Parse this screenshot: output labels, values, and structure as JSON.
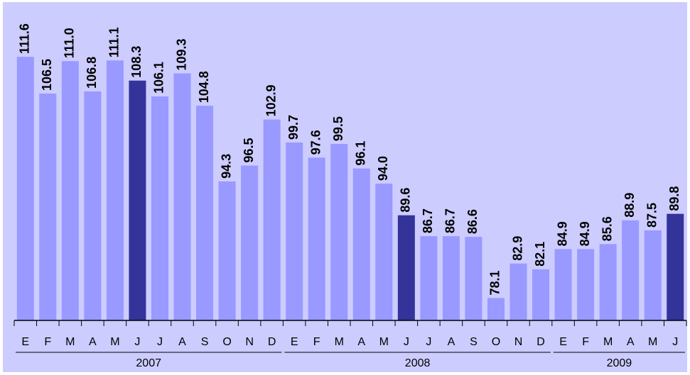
{
  "chart_data": {
    "type": "bar",
    "groups": [
      {
        "name": "2007",
        "categories": [
          "E",
          "F",
          "M",
          "A",
          "M",
          "J",
          "J",
          "A",
          "S",
          "O",
          "N",
          "D"
        ]
      },
      {
        "name": "2008",
        "categories": [
          "E",
          "F",
          "M",
          "A",
          "M",
          "J",
          "J",
          "A",
          "S",
          "O",
          "N",
          "D"
        ]
      },
      {
        "name": "2009",
        "categories": [
          "E",
          "F",
          "M",
          "A",
          "M",
          "J"
        ]
      }
    ],
    "values": [
      111.6,
      106.5,
      111.0,
      106.8,
      111.1,
      108.3,
      106.1,
      109.3,
      104.8,
      94.3,
      96.5,
      102.9,
      99.7,
      97.6,
      99.5,
      96.1,
      94.0,
      89.6,
      86.7,
      86.7,
      86.6,
      78.1,
      82.9,
      82.1,
      84.9,
      84.9,
      85.6,
      88.9,
      87.5,
      89.8
    ],
    "value_labels": [
      "111.6",
      "106.5",
      "111.0",
      "106.8",
      "111.1",
      "108.3",
      "106.1",
      "109.3",
      "104.8",
      "94.3",
      "96.5",
      "102.9",
      "99.7",
      "97.6",
      "99.5",
      "96.1",
      "94.0",
      "89.6",
      "86.7",
      "86.7",
      "86.6",
      "78.1",
      "82.9",
      "82.1",
      "84.9",
      "84.9",
      "85.6",
      "88.9",
      "87.5",
      "89.8"
    ],
    "colors": [
      "#9999ff",
      "#9999ff",
      "#9999ff",
      "#9999ff",
      "#9999ff",
      "#333399",
      "#9999ff",
      "#9999ff",
      "#9999ff",
      "#9999ff",
      "#9999ff",
      "#9999ff",
      "#9999ff",
      "#9999ff",
      "#9999ff",
      "#9999ff",
      "#9999ff",
      "#333399",
      "#9999ff",
      "#9999ff",
      "#9999ff",
      "#9999ff",
      "#9999ff",
      "#9999ff",
      "#9999ff",
      "#9999ff",
      "#9999ff",
      "#9999ff",
      "#9999ff",
      "#333399"
    ],
    "ylim": [
      75,
      119
    ]
  }
}
